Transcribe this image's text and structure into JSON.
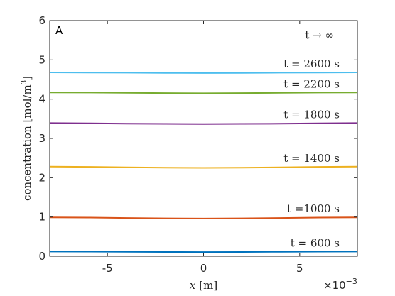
{
  "chart_data": {
    "type": "line",
    "panel_label": "A",
    "xlabel": "x [m]",
    "xlabel_var": "x",
    "xlabel_unit": "[m]",
    "ylabel": "concentration [mol/m³]",
    "ylabel_text": "concentration [mol/m",
    "ylabel_sup": "3",
    "ylabel_end": "]",
    "x_multiplier_base": "×10",
    "x_multiplier_exp": "−3",
    "xlim": [
      -0.008,
      0.008
    ],
    "ylim": [
      0,
      6
    ],
    "x_ticks": [
      -0.005,
      0,
      0.005
    ],
    "x_tick_labels": [
      "-5",
      "0",
      "5"
    ],
    "y_ticks": [
      0,
      1,
      2,
      3,
      4,
      5,
      6
    ],
    "y_tick_labels": [
      "0",
      "1",
      "2",
      "3",
      "4",
      "5",
      "6"
    ],
    "grid": false,
    "x": [
      -0.008,
      -0.006,
      -0.004,
      -0.002,
      0,
      0.002,
      0.004,
      0.006,
      0.008
    ],
    "series": [
      {
        "name": "t = 600 s",
        "color": "#0072BD",
        "values": [
          0.12,
          0.118,
          0.113,
          0.108,
          0.106,
          0.108,
          0.113,
          0.118,
          0.12
        ]
      },
      {
        "name": "t =1000 s",
        "color": "#D95319",
        "values": [
          0.99,
          0.985,
          0.975,
          0.965,
          0.96,
          0.965,
          0.975,
          0.985,
          0.99
        ]
      },
      {
        "name": "t = 1400 s",
        "color": "#EDB120",
        "values": [
          2.28,
          2.275,
          2.265,
          2.255,
          2.25,
          2.255,
          2.265,
          2.275,
          2.28
        ]
      },
      {
        "name": "t = 1800 s",
        "color": "#7E2F8E",
        "values": [
          3.39,
          3.385,
          3.375,
          3.37,
          3.365,
          3.37,
          3.375,
          3.385,
          3.39
        ]
      },
      {
        "name": "t = 2200 s",
        "color": "#77AC30",
        "values": [
          4.17,
          4.168,
          4.16,
          4.155,
          4.15,
          4.155,
          4.16,
          4.168,
          4.17
        ]
      },
      {
        "name": "t = 2600 s",
        "color": "#4DBEEE",
        "values": [
          4.68,
          4.678,
          4.673,
          4.668,
          4.665,
          4.668,
          4.673,
          4.678,
          4.68
        ]
      }
    ],
    "steady_state": {
      "name": "t → ∞",
      "value": 5.43,
      "color": "#808080",
      "style": "dashed"
    }
  }
}
